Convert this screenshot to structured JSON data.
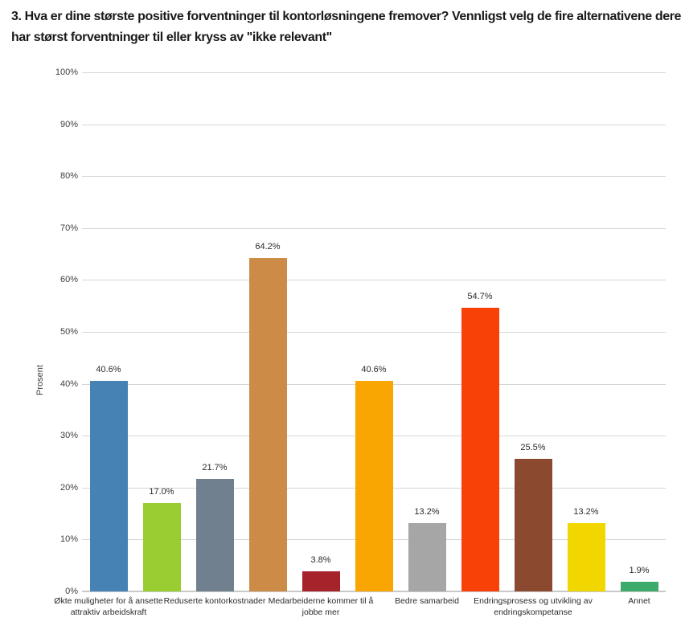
{
  "title": "3. Hva er dine største positive forventninger til kontorløsningene fremover? Vennligst velg de fire alternativene dere har størst forventninger til eller kryss av \"ikke relevant\"",
  "chart_data": {
    "type": "bar",
    "title": "3. Hva er dine største positive forventninger til kontorløsningene fremover? Vennligst velg de fire alternativene dere har størst forventninger til eller kryss av \"ikke relevant\"",
    "xlabel": "",
    "ylabel": "Prosent",
    "ylim": [
      0,
      100
    ],
    "ytick_step": 10,
    "ytick_labels": [
      "0%",
      "10%",
      "20%",
      "30%",
      "40%",
      "50%",
      "60%",
      "70%",
      "80%",
      "90%",
      "100%"
    ],
    "grid": true,
    "legend": false,
    "value_format": "percent",
    "points": [
      {
        "label": "Økte muligheter for å ansette\nattraktiv arbeidskraft",
        "value": 40.6,
        "value_label": "40.6%",
        "color": "#4682B4"
      },
      {
        "label": "",
        "value": 17.0,
        "value_label": "17.0%",
        "color": "#9ACD32"
      },
      {
        "label": "Reduserte kontorkostnader",
        "value": 21.7,
        "value_label": "21.7%",
        "color": "#70808F"
      },
      {
        "label": "",
        "value": 64.2,
        "value_label": "64.2%",
        "color": "#CC8C48"
      },
      {
        "label": "Medarbeiderne kommer til å\njobbe mer",
        "value": 3.8,
        "value_label": "3.8%",
        "color": "#A6232B"
      },
      {
        "label": "",
        "value": 40.6,
        "value_label": "40.6%",
        "color": "#F9A602"
      },
      {
        "label": "Bedre samarbeid",
        "value": 13.2,
        "value_label": "13.2%",
        "color": "#A6A6A6"
      },
      {
        "label": "",
        "value": 54.7,
        "value_label": "54.7%",
        "color": "#F84106"
      },
      {
        "label": "Endringsprosess og utvikling av\nendringskompetanse",
        "value": 25.5,
        "value_label": "25.5%",
        "color": "#8B4A2F"
      },
      {
        "label": "",
        "value": 13.2,
        "value_label": "13.2%",
        "color": "#F2D600"
      },
      {
        "label": "Annet",
        "value": 1.9,
        "value_label": "1.9%",
        "color": "#3CAB6B"
      }
    ]
  }
}
